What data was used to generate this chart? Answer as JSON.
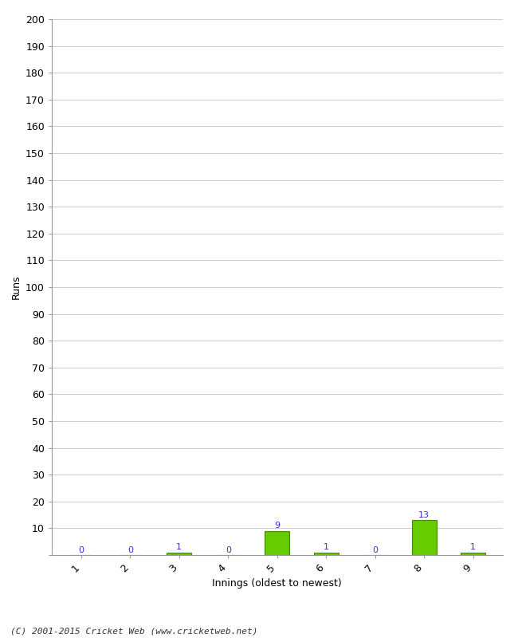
{
  "innings": [
    1,
    2,
    3,
    4,
    5,
    6,
    7,
    8,
    9
  ],
  "runs": [
    0,
    0,
    1,
    0,
    9,
    1,
    0,
    13,
    1
  ],
  "bar_color": "#66cc00",
  "bar_edge_color": "#448800",
  "label_color": "#3333cc",
  "xlabel": "Innings (oldest to newest)",
  "ylabel": "Runs",
  "ylim": [
    0,
    200
  ],
  "yticks": [
    0,
    10,
    20,
    30,
    40,
    50,
    60,
    70,
    80,
    90,
    100,
    110,
    120,
    130,
    140,
    150,
    160,
    170,
    180,
    190,
    200
  ],
  "background_color": "#ffffff",
  "grid_color": "#cccccc",
  "footer": "(C) 2001-2015 Cricket Web (www.cricketweb.net)"
}
